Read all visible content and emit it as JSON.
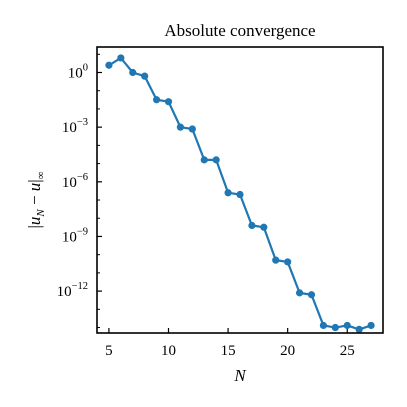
{
  "chart_data": {
    "type": "line",
    "title": "Absolute convergence",
    "xlabel": "N",
    "ylabel": "|u_N − u|_∞",
    "ylabel_parts": {
      "open": "|",
      "u": "u",
      "sub": "N",
      "mid": " − ",
      "u2": "u",
      "close": "|",
      "sub2": "∞"
    },
    "yscale": "log",
    "xlim": [
      4.0,
      28.0
    ],
    "ylim_log10": [
      -14.3,
      1.4
    ],
    "x_ticks": [
      5,
      10,
      15,
      20,
      25
    ],
    "x_tick_labels": [
      "5",
      "10",
      "15",
      "20",
      "25"
    ],
    "y_ticks_log10": [
      0,
      -3,
      -6,
      -9,
      -12
    ],
    "y_tick_labels": [
      {
        "base": "10",
        "exp": "0"
      },
      {
        "base": "10",
        "exp": "−3"
      },
      {
        "base": "10",
        "exp": "−6"
      },
      {
        "base": "10",
        "exp": "−9"
      },
      {
        "base": "10",
        "exp": "−12"
      }
    ],
    "grid": false,
    "series": [
      {
        "color": "#1f77b4",
        "x": [
          5,
          6,
          7,
          8,
          9,
          10,
          11,
          12,
          13,
          14,
          15,
          16,
          17,
          18,
          19,
          20,
          21,
          22,
          23,
          24,
          25,
          26,
          27
        ],
        "y": [
          2.5,
          6.3,
          1.0,
          0.63,
          0.032,
          0.025,
          0.001,
          0.00079,
          1.6e-05,
          1.6e-05,
          2.5e-07,
          2e-07,
          4e-09,
          3.2e-09,
          5e-11,
          4e-11,
          8e-13,
          6.3e-13,
          1.3e-14,
          1e-14,
          1.3e-14,
          7.9e-15,
          1.3e-14
        ]
      }
    ]
  }
}
